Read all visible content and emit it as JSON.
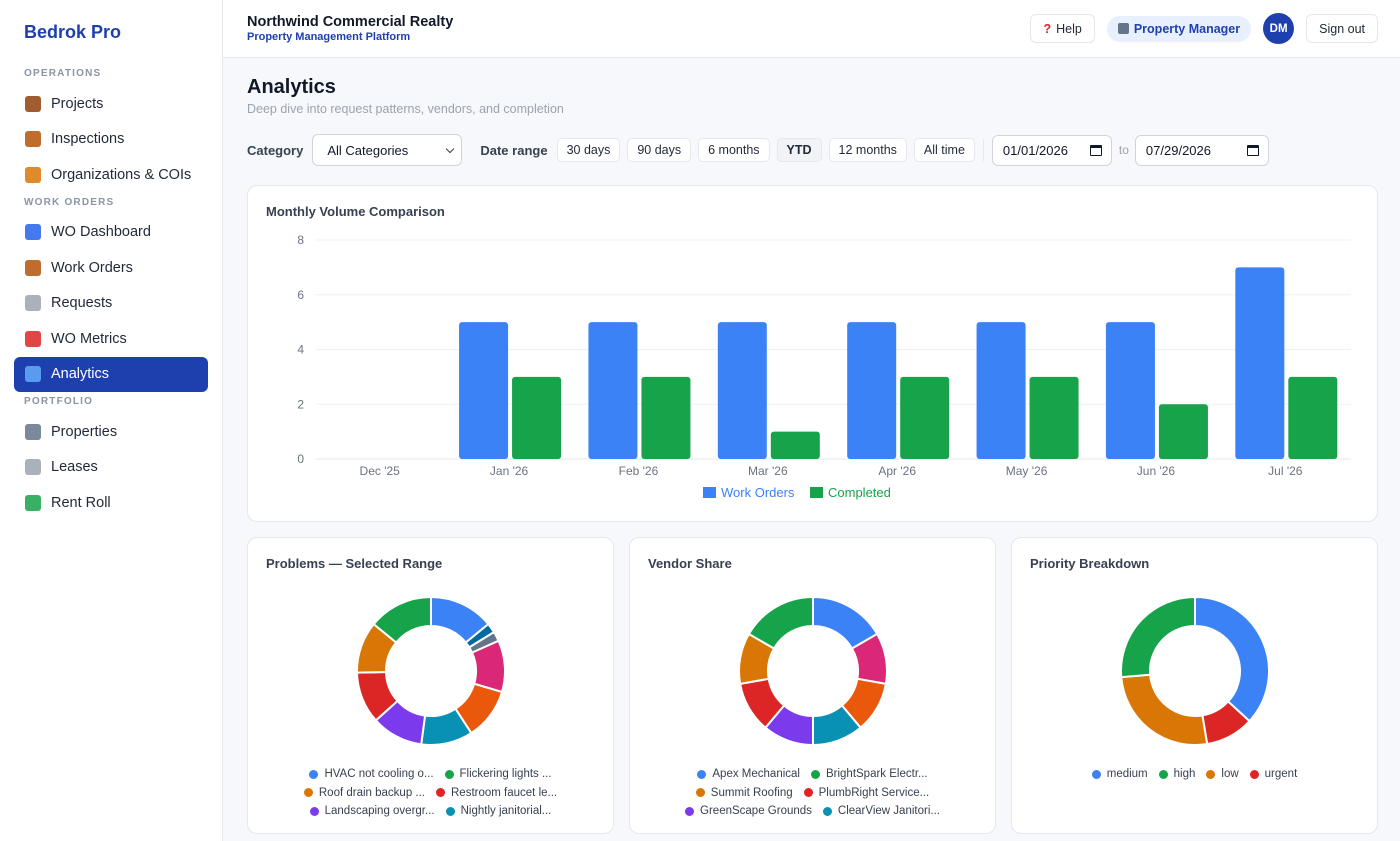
{
  "brand": "Bedrok Pro",
  "sidebar": {
    "sections": [
      {
        "label": "OPERATIONS",
        "items": [
          {
            "label": "Projects",
            "icon": "briefcase-icon",
            "color": "#92400e"
          },
          {
            "label": "Inspections",
            "icon": "clipboard-icon",
            "color": "#b45309"
          },
          {
            "label": "Organizations & COIs",
            "icon": "handshake-icon",
            "color": "#d97706"
          }
        ]
      },
      {
        "label": "WORK ORDERS",
        "items": [
          {
            "label": "WO Dashboard",
            "icon": "bar-chart-icon",
            "color": "#2563eb"
          },
          {
            "label": "Work Orders",
            "icon": "clipboard-icon",
            "color": "#b45309"
          },
          {
            "label": "Requests",
            "icon": "envelope-icon",
            "color": "#9ca3af"
          },
          {
            "label": "WO Metrics",
            "icon": "trend-chart-icon",
            "color": "#dc2626"
          },
          {
            "label": "Analytics",
            "icon": "magnifier-icon",
            "color": "#60a5fa",
            "active": true
          }
        ]
      },
      {
        "label": "PORTFOLIO",
        "items": [
          {
            "label": "Properties",
            "icon": "building-icon",
            "color": "#64748b"
          },
          {
            "label": "Leases",
            "icon": "document-icon",
            "color": "#9ca3af"
          },
          {
            "label": "Rent Roll",
            "icon": "banknote-icon",
            "color": "#16a34a"
          }
        ]
      }
    ]
  },
  "header": {
    "org_name": "Northwind Commercial Realty",
    "org_sub": "Property Management Platform",
    "help_label": "Help",
    "role_label": "Property Manager",
    "avatar_initials": "DM",
    "signout_label": "Sign out"
  },
  "page": {
    "title": "Analytics",
    "subtitle": "Deep dive into request patterns, vendors, and completion"
  },
  "filters": {
    "category_label": "Category",
    "category_value": "All Categories",
    "date_range_label": "Date range",
    "ranges": [
      "30 days",
      "90 days",
      "6 months",
      "YTD",
      "12 months",
      "All time"
    ],
    "active_range": "YTD",
    "date_from": "01/01/2026",
    "to_label": "to",
    "date_to": "07/29/2026"
  },
  "colors": {
    "blue": "#3b82f6",
    "green": "#16a34a",
    "orange": "#d97706",
    "red": "#dc2626",
    "purple": "#7c3aed",
    "teal": "#0891b2",
    "orange2": "#ea580c",
    "pink": "#db2777",
    "slate": "#64748b",
    "darkblue": "#0369a1",
    "accent": "#1e40af"
  },
  "chart_data": [
    {
      "type": "bar",
      "title": "Monthly Volume Comparison",
      "categories": [
        "Dec '25",
        "Jan '26",
        "Feb '26",
        "Mar '26",
        "Apr '26",
        "May '26",
        "Jun '26",
        "Jul '26"
      ],
      "series": [
        {
          "name": "Work Orders",
          "color": "#3b82f6",
          "values": [
            0,
            5,
            5,
            5,
            5,
            5,
            5,
            7
          ]
        },
        {
          "name": "Completed",
          "color": "#16a34a",
          "values": [
            0,
            3,
            3,
            1,
            3,
            3,
            2,
            3
          ]
        }
      ],
      "ylim": [
        0,
        8
      ],
      "yticks": [
        0,
        2,
        4,
        6,
        8
      ],
      "grid": true,
      "legend": "bottom-center"
    },
    {
      "type": "pie",
      "title": "Problems — Selected Range",
      "labels": [
        "HVAC not cooling o...",
        "Flickering lights ...",
        "Roof drain backup ...",
        "Restroom faucet le...",
        "Landscaping overgr...",
        "Nightly janitorial..."
      ],
      "slices": [
        {
          "label": "HVAC not cooling o...",
          "value": 2,
          "color": "#3b82f6"
        },
        {
          "value": 0.3,
          "color": "#0369a1"
        },
        {
          "value": 0.3,
          "color": "#64748b"
        },
        {
          "value": 1.6,
          "color": "#db2777"
        },
        {
          "value": 1.6,
          "color": "#ea580c"
        },
        {
          "label": "Nightly janitorial...",
          "value": 1.6,
          "color": "#0891b2"
        },
        {
          "label": "Landscaping overgr...",
          "value": 1.6,
          "color": "#7c3aed"
        },
        {
          "label": "Restroom faucet le...",
          "value": 1.6,
          "color": "#dc2626"
        },
        {
          "label": "Roof drain backup ...",
          "value": 1.6,
          "color": "#d97706"
        },
        {
          "label": "Flickering lights ...",
          "value": 2,
          "color": "#16a34a"
        }
      ],
      "donut": true
    },
    {
      "type": "pie",
      "title": "Vendor Share",
      "labels": [
        "Apex Mechanical",
        "BrightSpark Electr...",
        "Summit Roofing",
        "PlumbRight Service...",
        "GreenScape Grounds",
        "ClearView Janitori..."
      ],
      "slices": [
        {
          "label": "Apex Mechanical",
          "value": 3,
          "color": "#3b82f6"
        },
        {
          "value": 2,
          "color": "#db2777"
        },
        {
          "value": 2,
          "color": "#ea580c"
        },
        {
          "label": "ClearView Janitori...",
          "value": 2,
          "color": "#0891b2"
        },
        {
          "label": "GreenScape Grounds",
          "value": 2,
          "color": "#7c3aed"
        },
        {
          "label": "PlumbRight Service...",
          "value": 2,
          "color": "#dc2626"
        },
        {
          "label": "Summit Roofing",
          "value": 2,
          "color": "#d97706"
        },
        {
          "label": "BrightSpark Electr...",
          "value": 3,
          "color": "#16a34a"
        }
      ],
      "donut": true
    },
    {
      "type": "pie",
      "title": "Priority Breakdown",
      "labels": [
        "medium",
        "high",
        "low",
        "urgent"
      ],
      "slices": [
        {
          "label": "medium",
          "value": 14,
          "color": "#3b82f6"
        },
        {
          "label": "urgent",
          "value": 4,
          "color": "#dc2626"
        },
        {
          "label": "low",
          "value": 10,
          "color": "#d97706"
        },
        {
          "label": "high",
          "value": 10,
          "color": "#16a34a"
        }
      ],
      "donut": true
    }
  ],
  "legends": {
    "problems": [
      [
        {
          "label": "HVAC not cooling o...",
          "color": "#3b82f6"
        },
        {
          "label": "Flickering lights ...",
          "color": "#16a34a"
        }
      ],
      [
        {
          "label": "Roof drain backup ...",
          "color": "#d97706"
        },
        {
          "label": "Restroom faucet le...",
          "color": "#dc2626"
        }
      ],
      [
        {
          "label": "Landscaping overgr...",
          "color": "#7c3aed"
        },
        {
          "label": "Nightly janitorial...",
          "color": "#0891b2"
        }
      ]
    ],
    "vendors": [
      [
        {
          "label": "Apex Mechanical",
          "color": "#3b82f6"
        },
        {
          "label": "BrightSpark Electr...",
          "color": "#16a34a"
        }
      ],
      [
        {
          "label": "Summit Roofing",
          "color": "#d97706"
        },
        {
          "label": "PlumbRight Service...",
          "color": "#dc2626"
        }
      ],
      [
        {
          "label": "GreenScape Grounds",
          "color": "#7c3aed"
        },
        {
          "label": "ClearView Janitori...",
          "color": "#0891b2"
        }
      ]
    ],
    "priority": [
      [
        {
          "label": "medium",
          "color": "#3b82f6"
        },
        {
          "label": "high",
          "color": "#16a34a"
        },
        {
          "label": "low",
          "color": "#d97706"
        },
        {
          "label": "urgent",
          "color": "#dc2626"
        }
      ]
    ]
  }
}
